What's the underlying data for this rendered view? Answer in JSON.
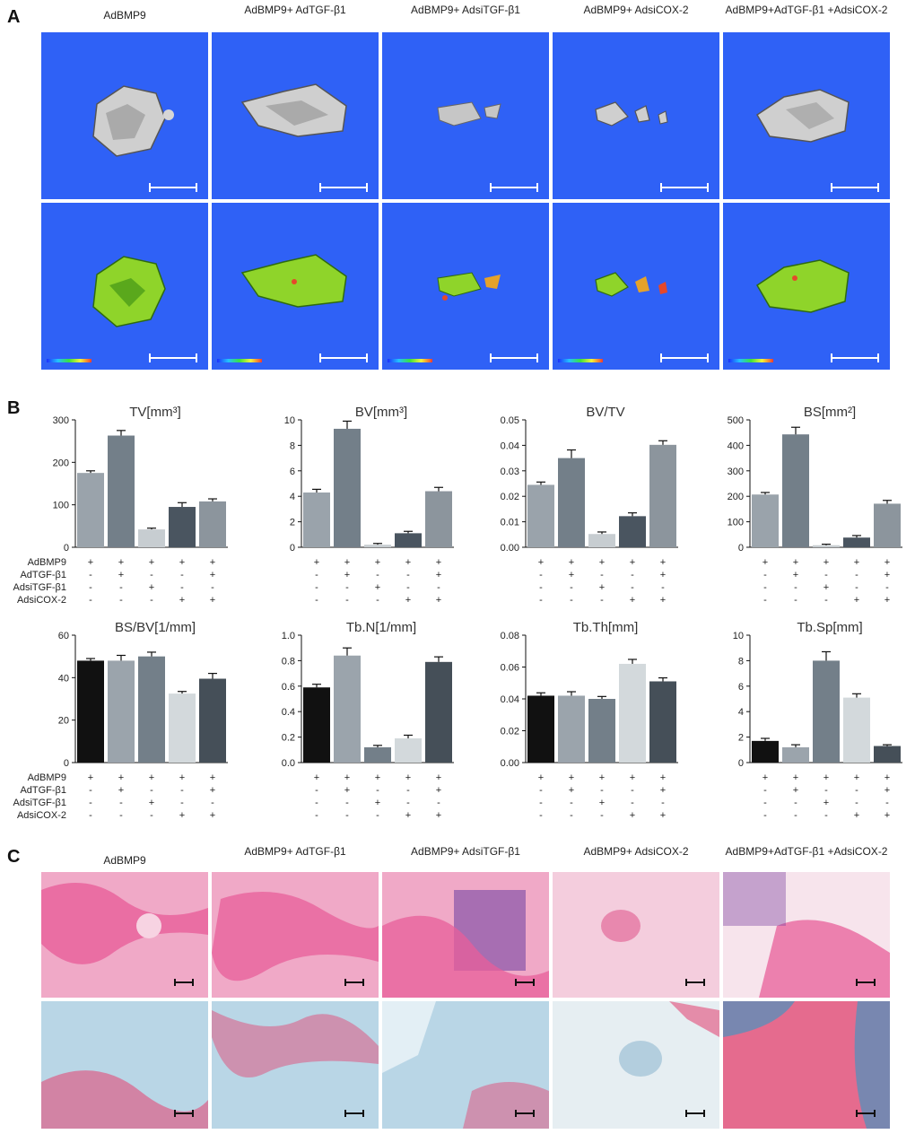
{
  "panels": {
    "a": "A",
    "b": "B",
    "c": "C"
  },
  "groups": [
    "AdBMP9",
    "AdBMP9+ AdTGF-β1",
    "AdBMP9+ AdsiTGF-β1",
    "AdBMP9+ AdsiCOX-2",
    "AdBMP9+AdTGF-β1 +AdsiCOX-2"
  ],
  "treatments": {
    "labels": [
      "AdBMP9",
      "AdTGF-β1",
      "AdsiTGF-β1",
      "AdsiCOX-2"
    ],
    "matrix": [
      [
        "+",
        "+",
        "+",
        "+",
        "+"
      ],
      [
        "-",
        "+",
        "-",
        "-",
        "+"
      ],
      [
        "-",
        "-",
        "+",
        "-",
        "-"
      ],
      [
        "-",
        "-",
        "-",
        "+",
        "+"
      ]
    ]
  },
  "colors": {
    "ct_background": "#2f61f6",
    "bar_palette_row1": [
      "#9aa3ab",
      "#737f89",
      "#c7cdd1",
      "#4a5560",
      "#8c959d"
    ],
    "bar_palette_row2": [
      "#111111",
      "#9ba4ac",
      "#737f89",
      "#d3d9dc",
      "#454f58"
    ]
  },
  "chart_data": [
    {
      "type": "bar",
      "title": "TV[mm³]",
      "ylim": [
        0,
        300
      ],
      "yticks": [
        0,
        100,
        200,
        300
      ],
      "values": [
        175,
        263,
        42,
        95,
        108
      ],
      "errors": [
        5,
        12,
        3,
        10,
        6
      ]
    },
    {
      "type": "bar",
      "title": "BV[mm³]",
      "ylim": [
        0,
        10
      ],
      "yticks": [
        0,
        2,
        4,
        6,
        8,
        10
      ],
      "values": [
        4.3,
        9.3,
        0.2,
        1.1,
        4.4
      ],
      "errors": [
        0.25,
        0.6,
        0.1,
        0.15,
        0.3
      ]
    },
    {
      "type": "bar",
      "title": "BV/TV",
      "ylim": [
        0,
        0.05
      ],
      "yticks": [
        0,
        0.01,
        0.02,
        0.03,
        0.04,
        0.05
      ],
      "tick_labels": [
        "0.00",
        "0.01",
        "0.02",
        "0.03",
        "0.04",
        "0.05"
      ],
      "values": [
        0.0245,
        0.035,
        0.0052,
        0.0122,
        0.0402
      ],
      "errors": [
        0.0011,
        0.0032,
        0.0008,
        0.0013,
        0.0016
      ]
    },
    {
      "type": "bar",
      "title": "BS[mm²]",
      "ylim": [
        0,
        500
      ],
      "yticks": [
        0,
        100,
        200,
        300,
        400,
        500
      ],
      "values": [
        207,
        443,
        8,
        38,
        171
      ],
      "errors": [
        8,
        28,
        4,
        8,
        13
      ]
    },
    {
      "type": "bar",
      "title": "BS/BV[1/mm]",
      "ylim": [
        0,
        60
      ],
      "yticks": [
        0,
        20,
        40,
        60
      ],
      "values": [
        48,
        48,
        50,
        32.5,
        39.5
      ],
      "errors": [
        1,
        2.5,
        2,
        1,
        2.5
      ]
    },
    {
      "type": "bar",
      "title": "Tb.N[1/mm]",
      "ylim": [
        0,
        1.0
      ],
      "yticks": [
        0,
        0.2,
        0.4,
        0.6,
        0.8,
        1.0
      ],
      "tick_labels": [
        "0.0",
        "0.2",
        "0.4",
        "0.6",
        "0.8",
        "1.0"
      ],
      "values": [
        0.59,
        0.84,
        0.12,
        0.19,
        0.79
      ],
      "errors": [
        0.025,
        0.06,
        0.015,
        0.025,
        0.04
      ]
    },
    {
      "type": "bar",
      "title": "Tb.Th[mm]",
      "ylim": [
        0,
        0.08
      ],
      "yticks": [
        0,
        0.02,
        0.04,
        0.06,
        0.08
      ],
      "tick_labels": [
        "0.00",
        "0.02",
        "0.04",
        "0.06",
        "0.08"
      ],
      "values": [
        0.042,
        0.042,
        0.04,
        0.062,
        0.051
      ],
      "errors": [
        0.0018,
        0.0025,
        0.0015,
        0.0028,
        0.0022
      ]
    },
    {
      "type": "bar",
      "title": "Tb.Sp[mm]",
      "ylim": [
        0,
        10
      ],
      "yticks": [
        0,
        2,
        4,
        6,
        8,
        10
      ],
      "values": [
        1.7,
        1.2,
        8.0,
        5.1,
        1.3
      ],
      "errors": [
        0.2,
        0.2,
        0.7,
        0.3,
        0.1
      ]
    }
  ]
}
